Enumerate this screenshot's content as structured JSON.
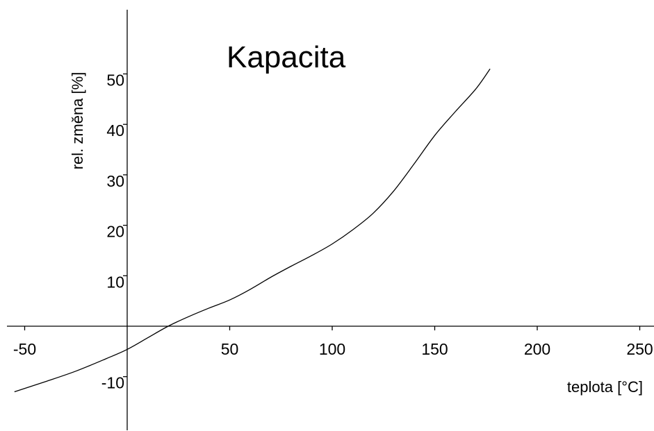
{
  "chart_data": {
    "type": "line",
    "title": "Kapacita",
    "xlabel": "teplota [°C]",
    "ylabel": "rel. změna [%]",
    "xlim": [
      -55,
      255
    ],
    "ylim": [
      -20,
      62
    ],
    "x_ticks": [
      {
        "value": -50,
        "label": "-50"
      },
      {
        "value": 50,
        "label": "50"
      },
      {
        "value": 100,
        "label": "100"
      },
      {
        "value": 150,
        "label": "150"
      },
      {
        "value": 200,
        "label": "200"
      },
      {
        "value": 250,
        "label": "250"
      }
    ],
    "y_ticks": [
      {
        "value": -10,
        "label": "-10"
      },
      {
        "value": 10,
        "label": "10"
      },
      {
        "value": 20,
        "label": "20"
      },
      {
        "value": 30,
        "label": "30"
      },
      {
        "value": 40,
        "label": "40"
      },
      {
        "value": 50,
        "label": "50"
      }
    ],
    "grid": false,
    "series": [
      {
        "x": [
          -55,
          -40,
          -25,
          -10,
          0,
          10,
          20,
          30,
          40,
          50,
          60,
          70,
          80,
          90,
          100,
          110,
          120,
          130,
          140,
          150,
          160,
          170,
          177
        ],
        "y": [
          -13,
          -11,
          -8.9,
          -6.4,
          -4.6,
          -2.3,
          0,
          1.9,
          3.6,
          5.2,
          7.3,
          9.7,
          11.9,
          14,
          16.3,
          19.1,
          22.4,
          26.8,
          32.2,
          37.8,
          42.5,
          47,
          51
        ]
      }
    ]
  }
}
